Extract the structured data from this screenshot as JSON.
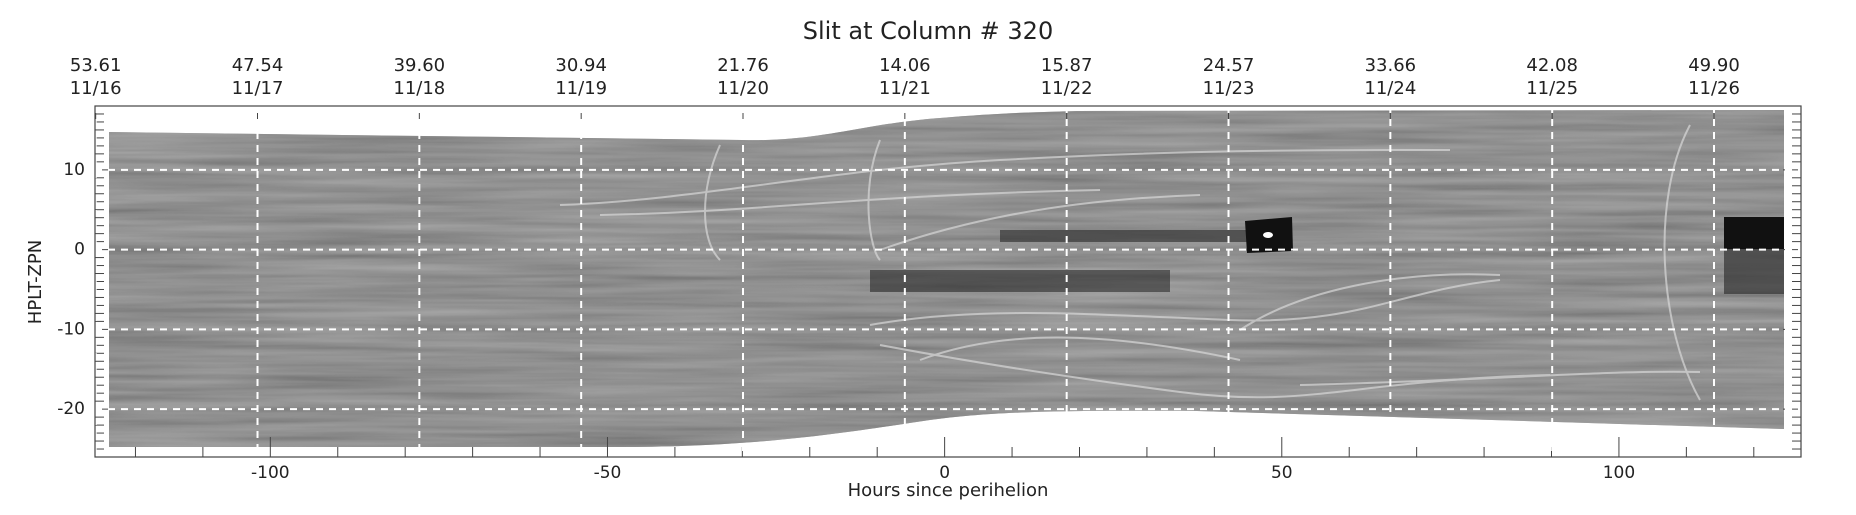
{
  "chart_data": {
    "type": "image",
    "title": "Slit at Column # 320",
    "xlabel": "Hours since perihelion",
    "ylabel": "HPLT-ZPN",
    "xlim": [
      -126,
      127
    ],
    "ylim": [
      -26,
      18
    ],
    "xticks": [
      -100,
      -50,
      0,
      50,
      100
    ],
    "yticks": [
      -20,
      -10,
      0,
      10
    ],
    "xminorticks": [
      -120,
      -110,
      -90,
      -80,
      -70,
      -60,
      -40,
      -30,
      -20,
      -10,
      10,
      20,
      30,
      40,
      60,
      70,
      80,
      90,
      110,
      120
    ],
    "yminorticks": [
      -25,
      -24,
      -23,
      -22,
      -21,
      -19,
      -18,
      -17,
      -16,
      -15,
      -14,
      -13,
      -12,
      -11,
      -9,
      -8,
      -7,
      -6,
      -5,
      -4,
      -3,
      -2,
      -1,
      1,
      2,
      3,
      4,
      5,
      6,
      7,
      8,
      9,
      11,
      12,
      13,
      14,
      15,
      16,
      17
    ],
    "grid": true,
    "top_axis": [
      {
        "x": -125.9,
        "distance": 53.61,
        "date": "11/16"
      },
      {
        "x": -101.9,
        "distance": 47.54,
        "date": "11/17"
      },
      {
        "x": -77.9,
        "distance": {
          "value": 39.6,
          "label": "39.60"
        },
        "date": "11/18"
      },
      {
        "x": -53.9,
        "distance": 30.94,
        "date": "11/19"
      },
      {
        "x": -29.9,
        "distance": 21.76,
        "date": "11/20"
      },
      {
        "x": -5.9,
        "distance": 14.06,
        "date": "11/21"
      },
      {
        "x": 18.1,
        "distance": 15.87,
        "date": "11/22"
      },
      {
        "x": 42.1,
        "distance": 24.57,
        "date": "11/23"
      },
      {
        "x": 66.1,
        "distance": 33.66,
        "date": "11/24"
      },
      {
        "x": 90.1,
        "distance": 42.08,
        "date": "11/25"
      },
      {
        "x": 114.1,
        "distance": {
          "value": 49.9,
          "label": "49.90"
        },
        "date": "11/26"
      }
    ]
  }
}
